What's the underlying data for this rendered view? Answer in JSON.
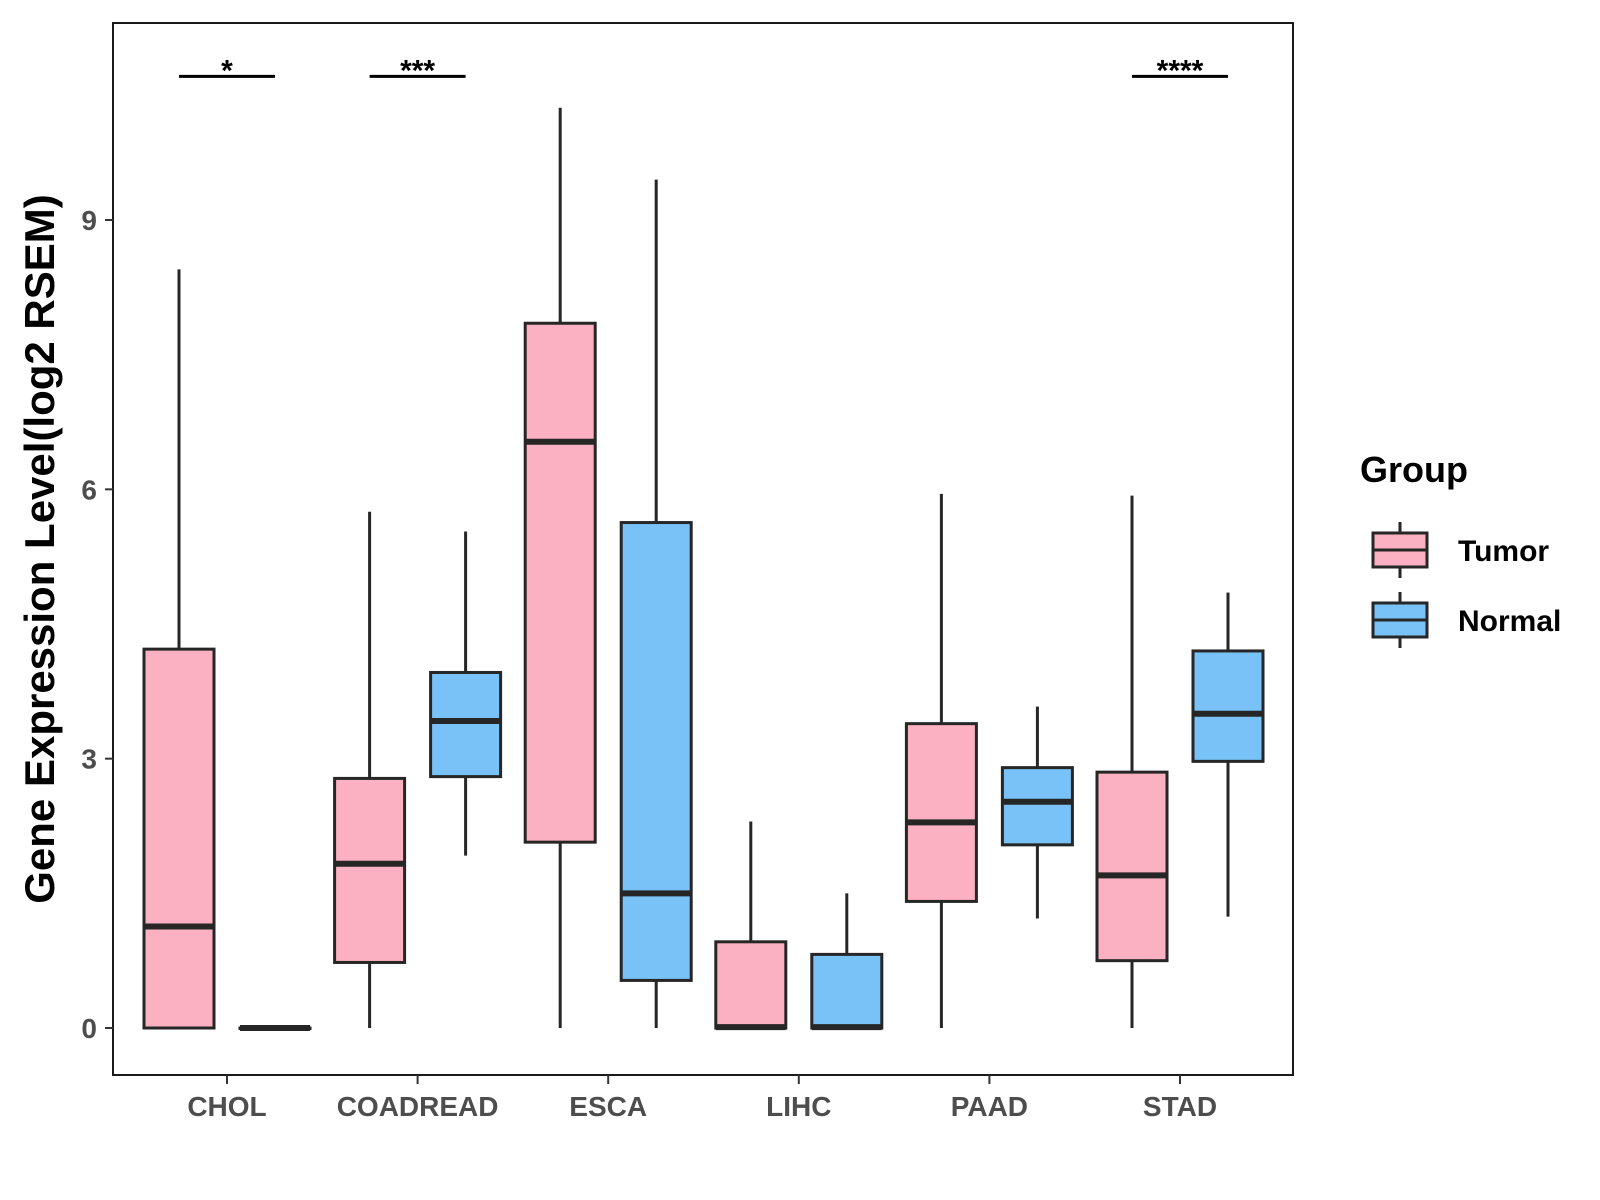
{
  "chart_data": {
    "type": "boxplot",
    "title": "",
    "xlabel": "",
    "ylabel": "Gene Expression Level(log2 RSEM)",
    "ylim": [
      -0.5,
      11.2
    ],
    "yticks": [
      0,
      3,
      6,
      9
    ],
    "categories": [
      "CHOL",
      "COADREAD",
      "ESCA",
      "LIHC",
      "PAAD",
      "STAD"
    ],
    "legend": {
      "title": "Group",
      "position": "right",
      "entries": [
        {
          "name": "Tumor",
          "color": "#FBB1C1"
        },
        {
          "name": "Normal",
          "color": "#78C2F8"
        }
      ]
    },
    "series": [
      {
        "name": "Tumor",
        "color": "#FBB1C1",
        "boxes": [
          {
            "category": "CHOL",
            "min": 0,
            "q1": 0,
            "median": 1.13,
            "q3": 4.22,
            "max": 8.45
          },
          {
            "category": "COADREAD",
            "min": 0,
            "q1": 0.73,
            "median": 1.83,
            "q3": 2.78,
            "max": 5.75
          },
          {
            "category": "ESCA",
            "min": 0,
            "q1": 2.07,
            "median": 6.53,
            "q3": 7.85,
            "max": 10.25
          },
          {
            "category": "LIHC",
            "min": 0,
            "q1": 0,
            "median": 0.01,
            "q3": 0.96,
            "max": 2.3
          },
          {
            "category": "PAAD",
            "min": 0,
            "q1": 1.41,
            "median": 2.29,
            "q3": 3.39,
            "max": 5.95
          },
          {
            "category": "STAD",
            "min": 0,
            "q1": 0.75,
            "median": 1.7,
            "q3": 2.85,
            "max": 5.93
          }
        ]
      },
      {
        "name": "Normal",
        "color": "#78C2F8",
        "boxes": [
          {
            "category": "CHOL",
            "min": 0,
            "q1": 0,
            "median": 0,
            "q3": 0,
            "max": 0
          },
          {
            "category": "COADREAD",
            "min": 1.92,
            "q1": 2.8,
            "median": 3.42,
            "q3": 3.96,
            "max": 5.53
          },
          {
            "category": "ESCA",
            "min": 0,
            "q1": 0.53,
            "median": 1.5,
            "q3": 5.63,
            "max": 9.45
          },
          {
            "category": "LIHC",
            "min": 0,
            "q1": 0,
            "median": 0.01,
            "q3": 0.82,
            "max": 1.5
          },
          {
            "category": "PAAD",
            "min": 1.22,
            "q1": 2.04,
            "median": 2.52,
            "q3": 2.9,
            "max": 3.58
          },
          {
            "category": "STAD",
            "min": 1.24,
            "q1": 2.97,
            "median": 3.5,
            "q3": 4.2,
            "max": 4.85
          }
        ]
      }
    ],
    "significance": [
      {
        "category": "CHOL",
        "label": "*",
        "y": 10.6
      },
      {
        "category": "COADREAD",
        "label": "***",
        "y": 10.6
      },
      {
        "category": "STAD",
        "label": "****",
        "y": 10.6
      }
    ]
  }
}
